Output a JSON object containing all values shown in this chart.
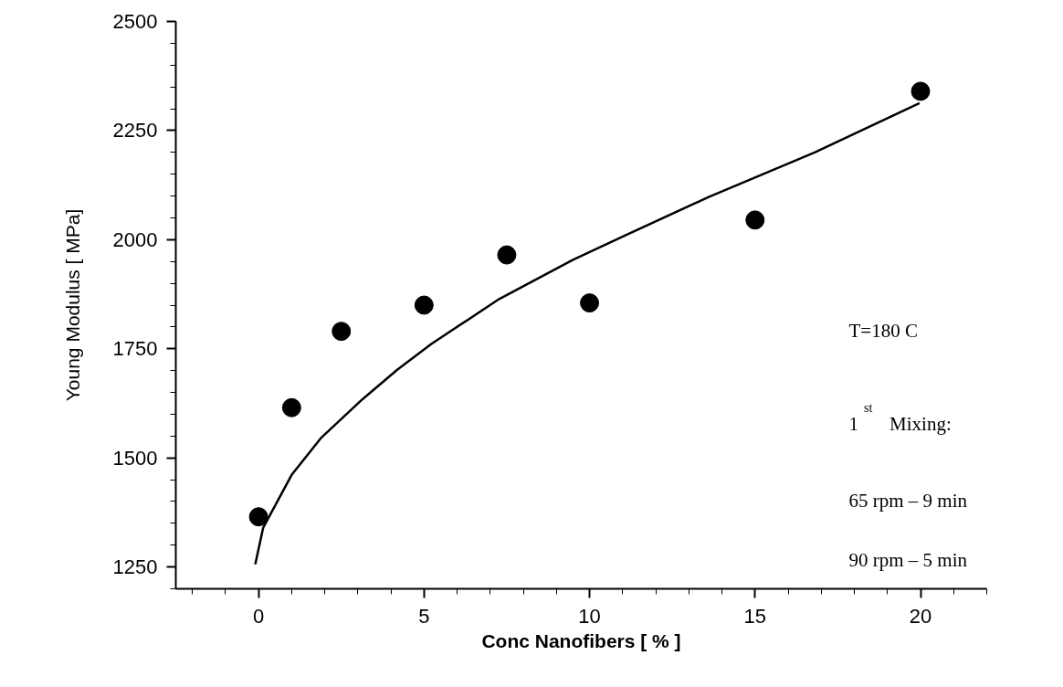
{
  "chart_data": {
    "type": "scatter",
    "xlabel": "Conc Nanofibers [ % ]",
    "ylabel": "Young Modulus [ MPa]",
    "xlim": [
      -2.5,
      22
    ],
    "xticks": [
      0,
      5,
      10,
      15,
      20
    ],
    "ylim": [
      1200,
      2500
    ],
    "yticks": [
      1250,
      1500,
      1750,
      2000,
      2250,
      2500
    ],
    "grid": false,
    "marker": "circle",
    "series": [
      {
        "color": "#000000",
        "x": [
          0,
          1,
          2.5,
          5,
          7.5,
          10,
          15,
          20
        ],
        "values": [
          1365,
          1615,
          1790,
          1850,
          1965,
          1855,
          2045,
          2340
        ]
      },
      {
        "type": "line",
        "color": "#000000",
        "marker": "none",
        "line_style": "solid",
        "x": [
          -0.1,
          0.14,
          1.0,
          1.88,
          3.15,
          4.19,
          5.22,
          7.27,
          9.5,
          11.2,
          13.6,
          16.8,
          19.97
        ],
        "values": [
          1256,
          1340,
          1461,
          1545,
          1635,
          1702,
          1761,
          1864,
          1954,
          2014,
          2098,
          2200,
          2313
        ]
      }
    ],
    "annotations": [
      "T=180 C",
      "1$^{st}$ Mixing:",
      "65 rpm – 9 min",
      "90 rpm – 5 min"
    ]
  }
}
